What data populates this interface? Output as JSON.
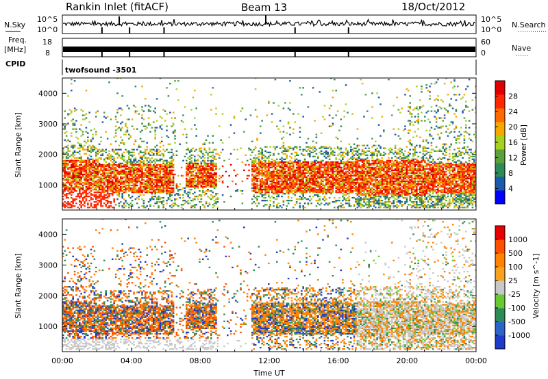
{
  "header": {
    "station": "Rankin Inlet (fitACF)",
    "beam": "Beam 13",
    "date": "18/Oct/2012"
  },
  "panels": {
    "nsky_label": "N.Sky",
    "nsearch_label": "N.Search",
    "nsky_ticks": [
      "10^5",
      "10^0"
    ],
    "nsearch_ticks": [
      "10^5",
      "10^0"
    ],
    "freq_label_1": "Freq.",
    "freq_label_2": "[MHz]",
    "freq_ticks": [
      "18",
      "8"
    ],
    "nave_label": "Nave",
    "nave_ticks": [
      "60",
      "0"
    ],
    "cpid_label": "CPID",
    "cpid_value": "twofsound -3501"
  },
  "colors": {
    "power": [
      "#0000ff",
      "#1e5aaa",
      "#2e8b57",
      "#5aa03c",
      "#a8d020",
      "#f5a800",
      "#ff6a00",
      "#ff2800",
      "#e00000"
    ],
    "velocity": [
      "#1e3cc8",
      "#2d64c8",
      "#2e8b57",
      "#6ac832",
      "#c8c8c8",
      "#f7a320",
      "#ff8200",
      "#ff5000",
      "#e60000"
    ]
  },
  "chart_data": [
    {
      "type": "heatmap",
      "name": "power",
      "ylabel": "Slant Range [km]",
      "colorbar_label": "Power [dB]",
      "colorbar_ticks": [
        "28",
        "24",
        "20",
        "16",
        "12",
        "8",
        "4"
      ],
      "y_ticks": [
        "4000",
        "3000",
        "2000",
        "1000"
      ],
      "ylim": [
        180,
        4500
      ],
      "xlim_hours": [
        0,
        24
      ]
    },
    {
      "type": "heatmap",
      "name": "velocity",
      "ylabel": "Slant Range [km]",
      "colorbar_label": "Velocity [m s^-1]",
      "colorbar_ticks": [
        "1000",
        "500",
        "100",
        "25",
        "-25",
        "-100",
        "-500",
        "-1000"
      ],
      "y_ticks": [
        "4000",
        "3000",
        "2000",
        "1000"
      ],
      "ylim": [
        180,
        4500
      ],
      "xlim_hours": [
        0,
        24
      ]
    }
  ],
  "xaxis": {
    "ticks": [
      "00:00",
      "04:00",
      "08:00",
      "12:00",
      "16:00",
      "20:00",
      "00:00"
    ],
    "label": "Time UT"
  }
}
